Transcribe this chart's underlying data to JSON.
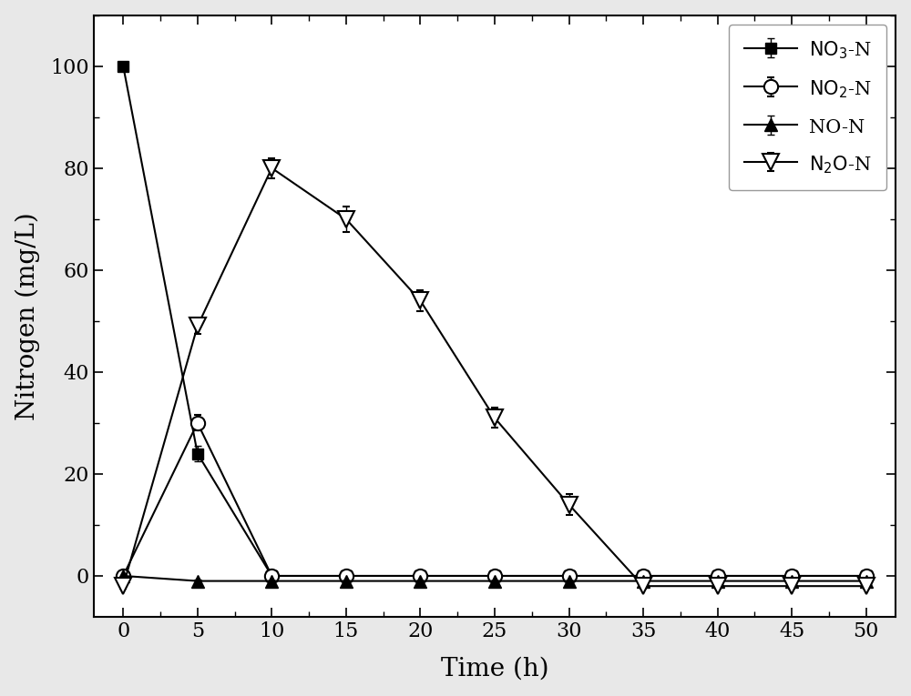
{
  "time": [
    0,
    5,
    10,
    15,
    20,
    25,
    30,
    35,
    40,
    45,
    50
  ],
  "NO3_N": [
    100,
    24,
    0,
    0,
    0,
    0,
    0,
    0,
    0,
    0,
    0
  ],
  "NO3_N_err": [
    0,
    1.5,
    0,
    0,
    0,
    0,
    0,
    0,
    0,
    0,
    0
  ],
  "NO2_N": [
    0,
    30,
    0,
    0,
    0,
    0,
    0,
    0,
    0,
    0,
    0
  ],
  "NO2_N_err": [
    0,
    1.5,
    0,
    0,
    0,
    0,
    0,
    0,
    0,
    0,
    0
  ],
  "NO_N": [
    0,
    -1,
    -1,
    -1,
    -1,
    -1,
    -1,
    -1,
    -1,
    -1,
    -1
  ],
  "NO_N_err": [
    0,
    0.3,
    0.3,
    0.3,
    0.3,
    0.3,
    0.3,
    0.3,
    0.3,
    0.3,
    0.3
  ],
  "N2O_N": [
    -2,
    49,
    80,
    70,
    54,
    31,
    14,
    -2,
    -2,
    -2,
    -2
  ],
  "N2O_N_err": [
    0.5,
    1.5,
    2,
    2.5,
    2,
    2,
    2,
    0.5,
    0.5,
    0.5,
    0.5
  ],
  "ylabel": "Nitrogen (mg/L)",
  "xlabel": "Time (h)",
  "ylim": [
    -8,
    110
  ],
  "xlim": [
    -2,
    52
  ],
  "yticks": [
    0,
    20,
    40,
    60,
    80,
    100
  ],
  "xticks": [
    0,
    5,
    10,
    15,
    20,
    25,
    30,
    35,
    40,
    45,
    50
  ],
  "legend_labels": [
    "$\\mathrm{NO_3}$-N",
    "$\\mathrm{NO_2}$-N",
    "NO-N",
    "$\\mathrm{N_2O}$-N"
  ],
  "color": "#000000",
  "bg_color": "#e8e8e8",
  "plot_bg_color": "#ffffff",
  "fig_width": 10.0,
  "fig_height": 7.65
}
